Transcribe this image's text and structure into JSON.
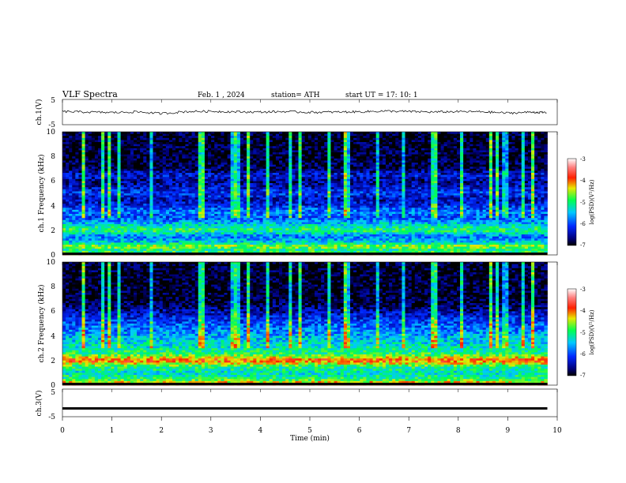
{
  "header": {
    "title": "VLF Spectra",
    "date": "Feb. 1 , 2024",
    "station": "station= ATH",
    "start_ut": "start UT = 17: 10: 1"
  },
  "chart_data": [
    {
      "type": "line",
      "panel": "ch1-time-series",
      "ylabel": "ch.1(V)",
      "ylim": [
        -5,
        5
      ],
      "y_tick_labels": [
        "5",
        "-5"
      ],
      "xlim": [
        0,
        10
      ],
      "series": [
        {
          "x": [
            0,
            0.5,
            1,
            1.5,
            2,
            2.5,
            3,
            3.5,
            4,
            4.5,
            5,
            5.5,
            6,
            6.5,
            7,
            7.5,
            8,
            8.5,
            9,
            9.5,
            9.8
          ],
          "values": [
            0.2,
            0.0,
            -0.2,
            0.1,
            -0.6,
            0.2,
            0.3,
            0.1,
            0.0,
            0.2,
            -0.1,
            0.0,
            0.1,
            0.4,
            0.2,
            0.0,
            0.2,
            0.1,
            -0.4,
            0.0,
            -0.3
          ]
        }
      ]
    },
    {
      "type": "heatmap",
      "panel": "ch1-spectrogram",
      "ylabel": "ch.1 Frequency (kHz)",
      "ylim": [
        0,
        10
      ],
      "y_tick_labels": [
        "0",
        "2",
        "4",
        "6",
        "8",
        "10"
      ],
      "xlim": [
        0,
        10
      ],
      "data_end_min": 9.8,
      "colorbar": {
        "label": "log(PSD)(V²/Hz)",
        "range": [
          -7,
          -3
        ],
        "tick_labels": [
          "-3",
          "-4",
          "-5",
          "-6",
          "-7"
        ]
      },
      "frequency_profile": [
        {
          "f": 0.0,
          "level": -3.6
        },
        {
          "f": 0.3,
          "level": -5.2
        },
        {
          "f": 0.7,
          "level": -4.6
        },
        {
          "f": 1.0,
          "level": -5.4
        },
        {
          "f": 1.5,
          "level": -5.8
        },
        {
          "f": 2.0,
          "level": -4.9
        },
        {
          "f": 2.5,
          "level": -5.4
        },
        {
          "f": 3.0,
          "level": -6.0
        },
        {
          "f": 3.5,
          "level": -5.8
        },
        {
          "f": 4.0,
          "level": -6.2
        },
        {
          "f": 4.5,
          "level": -6.5
        },
        {
          "f": 5.0,
          "level": -6.1
        },
        {
          "f": 5.5,
          "level": -6.4
        },
        {
          "f": 6.0,
          "level": -6.6
        },
        {
          "f": 6.5,
          "level": -6.3
        },
        {
          "f": 7.0,
          "level": -6.8
        },
        {
          "f": 8.0,
          "level": -6.9
        },
        {
          "f": 9.0,
          "level": -6.9
        },
        {
          "f": 10.0,
          "level": -6.9
        }
      ]
    },
    {
      "type": "heatmap",
      "panel": "ch2-spectrogram",
      "ylabel": "ch.2 Frequency (kHz)",
      "ylim": [
        0,
        10
      ],
      "y_tick_labels": [
        "0",
        "2",
        "4",
        "6",
        "8",
        "10"
      ],
      "xlim": [
        0,
        10
      ],
      "data_end_min": 9.8,
      "colorbar": {
        "label": "log(PSD)(V²/Hz)",
        "range": [
          -7,
          -3
        ],
        "tick_labels": [
          "-3",
          "-4",
          "-5",
          "-6",
          "-7"
        ]
      },
      "frequency_profile": [
        {
          "f": 0.0,
          "level": -3.8
        },
        {
          "f": 0.5,
          "level": -5.0
        },
        {
          "f": 1.0,
          "level": -5.3
        },
        {
          "f": 1.5,
          "level": -5.0
        },
        {
          "f": 2.0,
          "level": -3.9
        },
        {
          "f": 2.5,
          "level": -4.9
        },
        {
          "f": 3.0,
          "level": -5.2
        },
        {
          "f": 3.5,
          "level": -5.4
        },
        {
          "f": 4.0,
          "level": -5.6
        },
        {
          "f": 4.5,
          "level": -5.8
        },
        {
          "f": 5.0,
          "level": -6.0
        },
        {
          "f": 5.5,
          "level": -6.2
        },
        {
          "f": 6.0,
          "level": -6.5
        },
        {
          "f": 6.5,
          "level": -6.8
        },
        {
          "f": 7.0,
          "level": -6.9
        },
        {
          "f": 8.0,
          "level": -6.9
        },
        {
          "f": 9.0,
          "level": -6.9
        },
        {
          "f": 10.0,
          "level": -6.9
        }
      ]
    },
    {
      "type": "line",
      "panel": "ch3-time-series",
      "ylabel": "ch.3(V)",
      "ylim": [
        -5,
        5
      ],
      "y_tick_labels": [
        "5",
        "-5"
      ],
      "xlim": [
        0,
        10
      ],
      "xlabel": "Time (min)",
      "x_tick_labels": [
        "0",
        "1",
        "2",
        "3",
        "4",
        "5",
        "6",
        "7",
        "8",
        "9",
        "10"
      ],
      "series": [
        {
          "x": [
            0,
            9.8
          ],
          "values": [
            -2.0,
            -2.0
          ]
        }
      ]
    }
  ]
}
